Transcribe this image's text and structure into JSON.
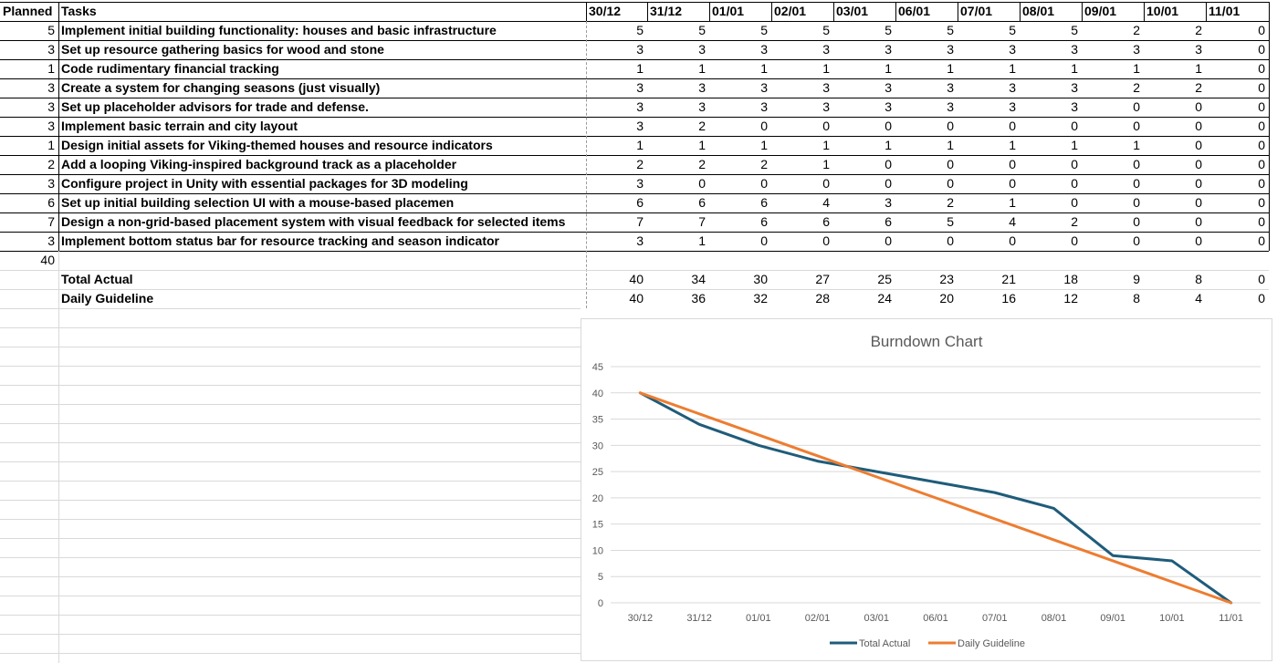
{
  "sheet": {
    "header": {
      "planned": "Planned",
      "tasks": "Tasks",
      "dates": [
        "30/12",
        "31/12",
        "01/01",
        "02/01",
        "03/01",
        "06/01",
        "07/01",
        "08/01",
        "09/01",
        "10/01",
        "11/01"
      ]
    },
    "rows": [
      {
        "planned": "5",
        "task": "Implement initial building functionality: houses and basic infrastructure",
        "values": [
          "5",
          "5",
          "5",
          "5",
          "5",
          "5",
          "5",
          "5",
          "2",
          "2",
          "0"
        ]
      },
      {
        "planned": "3",
        "task": "Set up resource gathering basics for wood and stone",
        "values": [
          "3",
          "3",
          "3",
          "3",
          "3",
          "3",
          "3",
          "3",
          "3",
          "3",
          "0"
        ]
      },
      {
        "planned": "1",
        "task": "Code rudimentary financial tracking",
        "values": [
          "1",
          "1",
          "1",
          "1",
          "1",
          "1",
          "1",
          "1",
          "1",
          "1",
          "0"
        ]
      },
      {
        "planned": "3",
        "task": "Create a system for changing seasons (just visually)",
        "values": [
          "3",
          "3",
          "3",
          "3",
          "3",
          "3",
          "3",
          "3",
          "2",
          "2",
          "0"
        ]
      },
      {
        "planned": "3",
        "task": "Set up placeholder advisors for trade and defense.",
        "values": [
          "3",
          "3",
          "3",
          "3",
          "3",
          "3",
          "3",
          "3",
          "0",
          "0",
          "0"
        ]
      },
      {
        "planned": "3",
        "task": "Implement basic terrain and city layout",
        "values": [
          "3",
          "2",
          "0",
          "0",
          "0",
          "0",
          "0",
          "0",
          "0",
          "0",
          "0"
        ]
      },
      {
        "planned": "1",
        "task": "Design initial assets for Viking-themed houses and resource indicators",
        "values": [
          "1",
          "1",
          "1",
          "1",
          "1",
          "1",
          "1",
          "1",
          "1",
          "0",
          "0"
        ]
      },
      {
        "planned": "2",
        "task": "Add a looping Viking-inspired background track as a placeholder",
        "values": [
          "2",
          "2",
          "2",
          "1",
          "0",
          "0",
          "0",
          "0",
          "0",
          "0",
          "0"
        ]
      },
      {
        "planned": "3",
        "task": "Configure project in Unity with essential packages for 3D modeling",
        "values": [
          "3",
          "0",
          "0",
          "0",
          "0",
          "0",
          "0",
          "0",
          "0",
          "0",
          "0"
        ]
      },
      {
        "planned": "6",
        "task": "Set up initial building selection UI with a mouse-based placemen",
        "values": [
          "6",
          "6",
          "6",
          "4",
          "3",
          "2",
          "1",
          "0",
          "0",
          "0",
          "0"
        ]
      },
      {
        "planned": "7",
        "task": "Design a non-grid-based placement system with visual feedback for selected items",
        "values": [
          "7",
          "7",
          "6",
          "6",
          "6",
          "5",
          "4",
          "2",
          "0",
          "0",
          "0"
        ]
      },
      {
        "planned": "3",
        "task": "Implement bottom status bar for resource tracking and season indicator",
        "values": [
          "3",
          "1",
          "0",
          "0",
          "0",
          "0",
          "0",
          "0",
          "0",
          "0",
          "0"
        ]
      }
    ],
    "planned_total": "40",
    "summary": [
      {
        "label": "Total Actual",
        "values": [
          "40",
          "34",
          "30",
          "27",
          "25",
          "23",
          "21",
          "18",
          "9",
          "8",
          "0"
        ]
      },
      {
        "label": "Daily Guideline",
        "values": [
          "40",
          "36",
          "32",
          "28",
          "24",
          "20",
          "16",
          "12",
          "8",
          "4",
          "0"
        ]
      }
    ]
  },
  "chart_data": {
    "type": "line",
    "title": "Burndown Chart",
    "categories": [
      "30/12",
      "31/12",
      "01/01",
      "02/01",
      "03/01",
      "06/01",
      "07/01",
      "08/01",
      "09/01",
      "10/01",
      "11/01"
    ],
    "series": [
      {
        "name": "Total Actual",
        "color": "#1f5c7a",
        "values": [
          40,
          34,
          30,
          27,
          25,
          23,
          21,
          18,
          9,
          8,
          0
        ]
      },
      {
        "name": "Daily Guideline",
        "color": "#ed7d31",
        "values": [
          40,
          36,
          32,
          28,
          24,
          20,
          16,
          12,
          8,
          4,
          0
        ]
      }
    ],
    "ylim": [
      0,
      45
    ],
    "yticks": [
      "0",
      "5",
      "10",
      "15",
      "20",
      "25",
      "30",
      "35",
      "40",
      "45"
    ],
    "grid": true,
    "legend": "bottom",
    "xlabel": "",
    "ylabel": ""
  },
  "colors": {
    "gridline": "#d9d9d9",
    "border": "#000000",
    "dashed": "#9a9a9a"
  }
}
